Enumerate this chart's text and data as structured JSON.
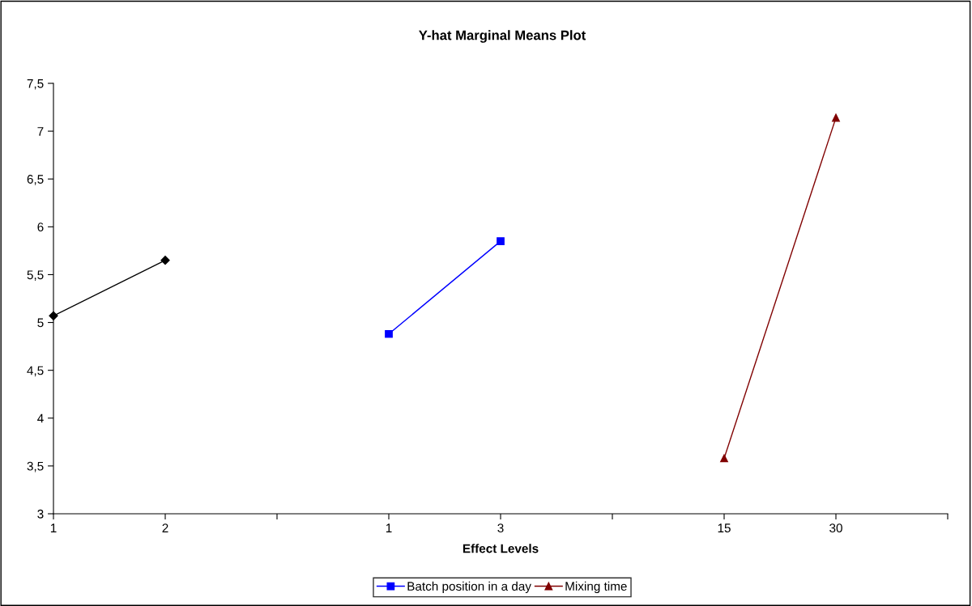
{
  "chart_data": {
    "type": "line",
    "title": "Y-hat Marginal Means Plot",
    "xlabel": "Effect Levels",
    "categories": [
      "1",
      "2",
      null,
      "1",
      "3",
      null,
      "15",
      "30",
      null
    ],
    "series": [
      {
        "color": "#000000",
        "marker": "diamond",
        "values": [
          5.07,
          5.65,
          null,
          null,
          null,
          null,
          null,
          null,
          null
        ]
      },
      {
        "name": "Batch position in a day",
        "color": "#0000ff",
        "marker": "square",
        "values": [
          null,
          null,
          null,
          4.88,
          5.85,
          null,
          null,
          null,
          null
        ]
      },
      {
        "name": "Mixing time",
        "color": "#800000",
        "marker": "triangle",
        "values": [
          null,
          null,
          null,
          null,
          null,
          null,
          3.58,
          7.14,
          null
        ]
      }
    ],
    "ylim": [
      3,
      7.5
    ],
    "yticks": [
      {
        "value": 3,
        "label": "3"
      },
      {
        "value": 3.5,
        "label": "3,5"
      },
      {
        "value": 4,
        "label": "4"
      },
      {
        "value": 4.5,
        "label": "4,5"
      },
      {
        "value": 5,
        "label": "5"
      },
      {
        "value": 5.5,
        "label": "5,5"
      },
      {
        "value": 6,
        "label": "6"
      },
      {
        "value": 6.5,
        "label": "6,5"
      },
      {
        "value": 7,
        "label": "7"
      },
      {
        "value": 7.5,
        "label": "7,5"
      }
    ],
    "grid": false,
    "legend": "bottom"
  }
}
